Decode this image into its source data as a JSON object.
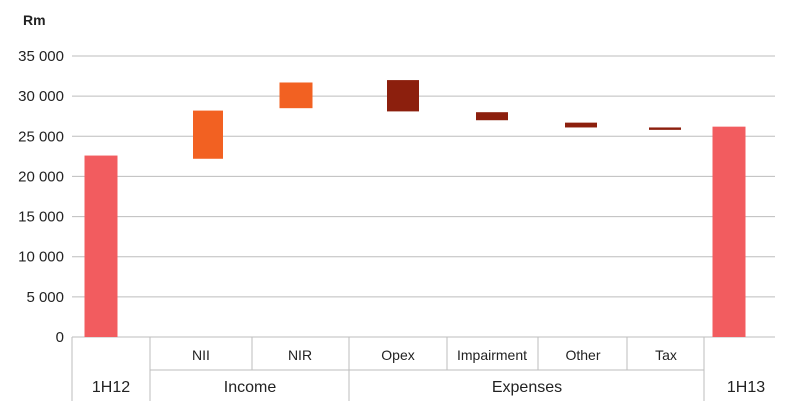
{
  "chart_data": {
    "type": "bar",
    "subtype": "waterfall",
    "unit_label": "Rm",
    "ylim": [
      0,
      35000
    ],
    "yticks": [
      0,
      5000,
      10000,
      15000,
      20000,
      25000,
      30000,
      35000
    ],
    "ytick_labels": [
      "0",
      "5 000",
      "10 000",
      "15 000",
      "20 000",
      "25 000",
      "30 000",
      "35 000"
    ],
    "grid": true,
    "bars": [
      {
        "label": "",
        "group": "1H12",
        "start": 0,
        "end": 22600,
        "color": "#f25c5f"
      },
      {
        "label": "NII",
        "group": "Income",
        "start": 22200,
        "end": 28200,
        "color": "#f26122"
      },
      {
        "label": "NIR",
        "group": "Income",
        "start": 28500,
        "end": 31700,
        "color": "#f26122"
      },
      {
        "label": "Opex",
        "group": "Expenses",
        "start": 28100,
        "end": 32000,
        "color": "#8c1f0d"
      },
      {
        "label": "Impairment",
        "group": "Expenses",
        "start": 27000,
        "end": 28000,
        "color": "#8c1f0d"
      },
      {
        "label": "Other",
        "group": "Expenses",
        "start": 26100,
        "end": 26700,
        "color": "#8c1f0d"
      },
      {
        "label": "Tax",
        "group": "Expenses",
        "start": 25800,
        "end": 26100,
        "color": "#8c1f0d"
      },
      {
        "label": "",
        "group": "1H13",
        "start": 0,
        "end": 26200,
        "color": "#f25c5f"
      }
    ],
    "groups": [
      "1H12",
      "Income",
      "Expenses",
      "1H13"
    ]
  }
}
